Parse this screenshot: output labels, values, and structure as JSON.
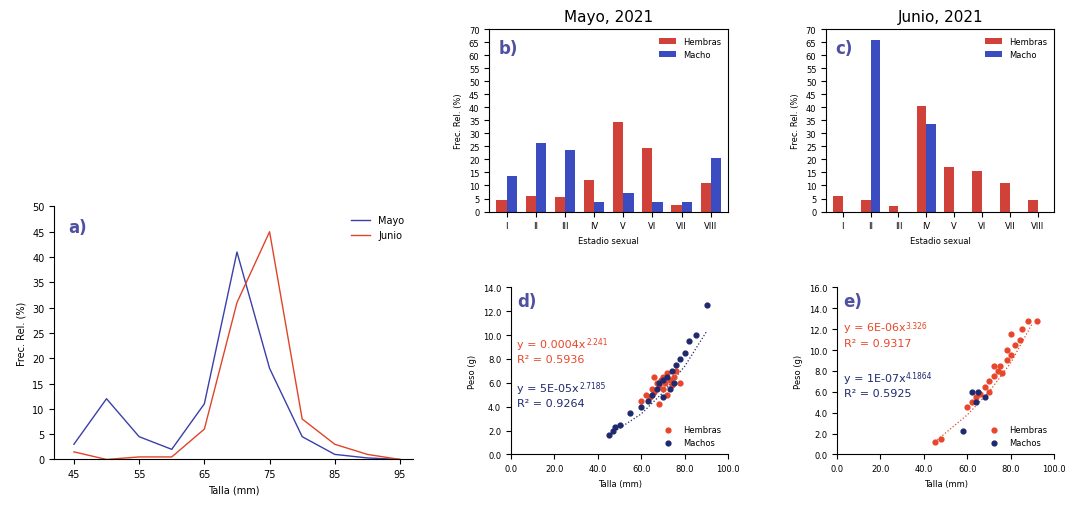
{
  "chart_data": [
    {
      "type": "line",
      "annotations": [
        {
          "text": "a)"
        }
      ],
      "x": [
        45,
        50,
        55,
        60,
        65,
        70,
        75,
        80,
        85,
        90,
        95
      ],
      "series": [
        {
          "name": "Mayo",
          "color": "#3b3fa8",
          "values": [
            3,
            12,
            4.5,
            2,
            11,
            41,
            18,
            4.5,
            1,
            0.3,
            0
          ]
        },
        {
          "name": "Junio",
          "color": "#e0442a",
          "values": [
            1.5,
            0,
            0.5,
            0.5,
            6,
            31,
            45,
            8,
            3,
            1,
            0
          ]
        }
      ],
      "xlabel": "Talla (mm)",
      "ylabel": "Frec. Rel. (%)",
      "xlim": [
        42,
        97
      ],
      "ylim": [
        0,
        50
      ],
      "xticks": [
        45,
        55,
        65,
        75,
        85,
        95
      ],
      "yticks": [
        0,
        5,
        10,
        15,
        20,
        25,
        30,
        35,
        40,
        45,
        50
      ],
      "legend": "upper right"
    },
    {
      "type": "bar",
      "title": "Mayo, 2021",
      "annotations": [
        {
          "text": "b)"
        }
      ],
      "categories": [
        "I",
        "II",
        "III",
        "IV",
        "V",
        "VI",
        "VII",
        "VIII"
      ],
      "series": [
        {
          "name": "Hembras",
          "color": "#d0413a",
          "values": [
            4.5,
            6,
            5.5,
            12,
            34.5,
            24.5,
            2.5,
            11
          ]
        },
        {
          "name": "Macho",
          "color": "#3a4cc0",
          "values": [
            13.5,
            26.5,
            23.5,
            3.5,
            7,
            3.5,
            3.5,
            20.5
          ]
        }
      ],
      "xlabel": "Estadio sexual",
      "ylabel": "Frec. Rel. (%)",
      "ylim": [
        0,
        70
      ],
      "yticks": [
        0,
        5,
        10,
        15,
        20,
        25,
        30,
        35,
        40,
        45,
        50,
        55,
        60,
        65,
        70
      ],
      "legend": "upper right"
    },
    {
      "type": "bar",
      "title": "Junio, 2021",
      "annotations": [
        {
          "text": "c)"
        }
      ],
      "categories": [
        "I",
        "II",
        "III",
        "IV",
        "V",
        "VI",
        "VII",
        "VIII"
      ],
      "series": [
        {
          "name": "Hembras",
          "color": "#d0413a",
          "values": [
            6,
            4.5,
            2,
            40.5,
            17,
            15.5,
            11,
            4.5
          ]
        },
        {
          "name": "Macho",
          "color": "#3a4cc0",
          "values": [
            0,
            66,
            0,
            33.5,
            0,
            0,
            0,
            0
          ]
        }
      ],
      "xlabel": "Estadio sexual",
      "ylabel": "Frec. Rel. (%)",
      "ylim": [
        0,
        70
      ],
      "yticks": [
        0,
        5,
        10,
        15,
        20,
        25,
        30,
        35,
        40,
        45,
        50,
        55,
        60,
        65,
        70
      ],
      "legend": "upper right"
    },
    {
      "type": "scatter",
      "annotations": [
        {
          "text": "d)"
        },
        {
          "text": "y = 0.0004x",
          "superscript": "2.241",
          "color": "#e8462a"
        },
        {
          "text": "R² = 0.5936",
          "color": "#e8462a"
        },
        {
          "text": "y = 5E-05x",
          "superscript": "2.7185",
          "color": "#1f2a6e"
        },
        {
          "text": "R² = 0.9264",
          "color": "#1f2a6e"
        }
      ],
      "series": [
        {
          "name": "Hembras",
          "color": "#e8462a",
          "marker": "o",
          "x": [
            60,
            62,
            64,
            65,
            66,
            67,
            68,
            69,
            70,
            70,
            71,
            72,
            72,
            73,
            74,
            75,
            76,
            78,
            68,
            66
          ],
          "values": [
            4.5,
            5.0,
            4.8,
            5.5,
            5.2,
            6.0,
            5.8,
            6.2,
            5.5,
            6.5,
            6.0,
            5.0,
            6.8,
            6.2,
            5.8,
            6.5,
            7.0,
            6.0,
            4.2,
            6.5
          ]
        },
        {
          "name": "Machos",
          "color": "#1f2a6e",
          "marker": "o",
          "x": [
            45,
            47,
            48,
            50,
            55,
            60,
            63,
            65,
            67,
            68,
            70,
            72,
            74,
            75,
            76,
            78,
            80,
            82,
            85,
            90,
            70,
            73
          ],
          "values": [
            1.6,
            2.0,
            2.3,
            2.5,
            3.5,
            4.0,
            4.5,
            5.0,
            5.5,
            6.0,
            6.2,
            6.5,
            7.0,
            6.0,
            7.5,
            8.0,
            8.5,
            9.5,
            10.0,
            12.5,
            4.8,
            5.5
          ],
          "trend_x": [
            45,
            60,
            70,
            80,
            90
          ],
          "trend_values": [
            1.6,
            3.4,
            5.2,
            7.4,
            10.3
          ],
          "line_style": "dotted"
        }
      ],
      "xlabel": "Talla (mm)",
      "ylabel": "Peso (g)",
      "xlim": [
        0,
        100
      ],
      "ylim": [
        0,
        14
      ],
      "xticks": [
        {
          "value": 0,
          "label": "0.0"
        },
        {
          "value": 20,
          "label": "20.0"
        },
        {
          "value": 40,
          "label": "40.0"
        },
        {
          "value": 60,
          "label": "60.0"
        },
        {
          "value": 80,
          "label": "80.0"
        },
        {
          "value": 100,
          "label": "100.0"
        }
      ],
      "yticks": [
        {
          "value": 0,
          "label": "0.0"
        },
        {
          "value": 2,
          "label": "2.0"
        },
        {
          "value": 4,
          "label": "4.0"
        },
        {
          "value": 6,
          "label": "6.0"
        },
        {
          "value": 8,
          "label": "8.0"
        },
        {
          "value": 10,
          "label": "10.0"
        },
        {
          "value": 12,
          "label": "12.0"
        },
        {
          "value": 14,
          "label": "14.0"
        }
      ],
      "legend": "lower right"
    },
    {
      "type": "scatter",
      "annotations": [
        {
          "text": "e)"
        },
        {
          "text": "y = 6E-06x",
          "superscript": "3.326",
          "color": "#e8462a"
        },
        {
          "text": "R² = 0.9317",
          "color": "#e8462a"
        },
        {
          "text": "y = 1E-07x",
          "superscript": "4.1864",
          "color": "#1f2a6e"
        },
        {
          "text": "R² = 0.5925",
          "color": "#1f2a6e"
        }
      ],
      "series": [
        {
          "name": "Hembras",
          "color": "#e8462a",
          "marker": "o",
          "x": [
            45,
            48,
            60,
            62,
            64,
            66,
            68,
            70,
            72,
            74,
            75,
            76,
            78,
            80,
            82,
            84,
            85,
            88,
            92,
            70,
            72,
            78,
            80
          ],
          "values": [
            1.2,
            1.5,
            4.5,
            5.0,
            5.5,
            5.8,
            6.5,
            7.0,
            7.5,
            8.0,
            8.5,
            7.8,
            9.0,
            9.5,
            10.5,
            11.0,
            12.0,
            12.8,
            12.8,
            6.0,
            8.5,
            10.0,
            11.5
          ],
          "trend_x": [
            45,
            60,
            70,
            80,
            90
          ],
          "trend_values": [
            1.2,
            3.8,
            6.0,
            8.8,
            12.6
          ],
          "line_style": "dotted"
        },
        {
          "name": "Machos",
          "color": "#1f2a6e",
          "marker": "o",
          "x": [
            58,
            62,
            65,
            68,
            64
          ],
          "values": [
            2.2,
            6.0,
            6.0,
            5.5,
            5.0
          ]
        }
      ],
      "xlabel": "Talla (mm)",
      "ylabel": "Peso (g)",
      "xlim": [
        0,
        100
      ],
      "ylim": [
        0,
        16
      ],
      "xticks": [
        {
          "value": 0,
          "label": "0.0"
        },
        {
          "value": 20,
          "label": "20.0"
        },
        {
          "value": 40,
          "label": "40.0"
        },
        {
          "value": 60,
          "label": "60.0"
        },
        {
          "value": 80,
          "label": "80.0"
        },
        {
          "value": 100,
          "label": "100.0"
        }
      ],
      "yticks": [
        {
          "value": 0,
          "label": "0.0"
        },
        {
          "value": 2,
          "label": "2.0"
        },
        {
          "value": 4,
          "label": "4.0"
        },
        {
          "value": 6,
          "label": "6.0"
        },
        {
          "value": 8,
          "label": "8.0"
        },
        {
          "value": 10,
          "label": "10.0"
        },
        {
          "value": 12,
          "label": "12.0"
        },
        {
          "value": 14,
          "label": "14.0"
        },
        {
          "value": 16,
          "label": "16.0"
        }
      ],
      "legend": "lower right"
    }
  ]
}
